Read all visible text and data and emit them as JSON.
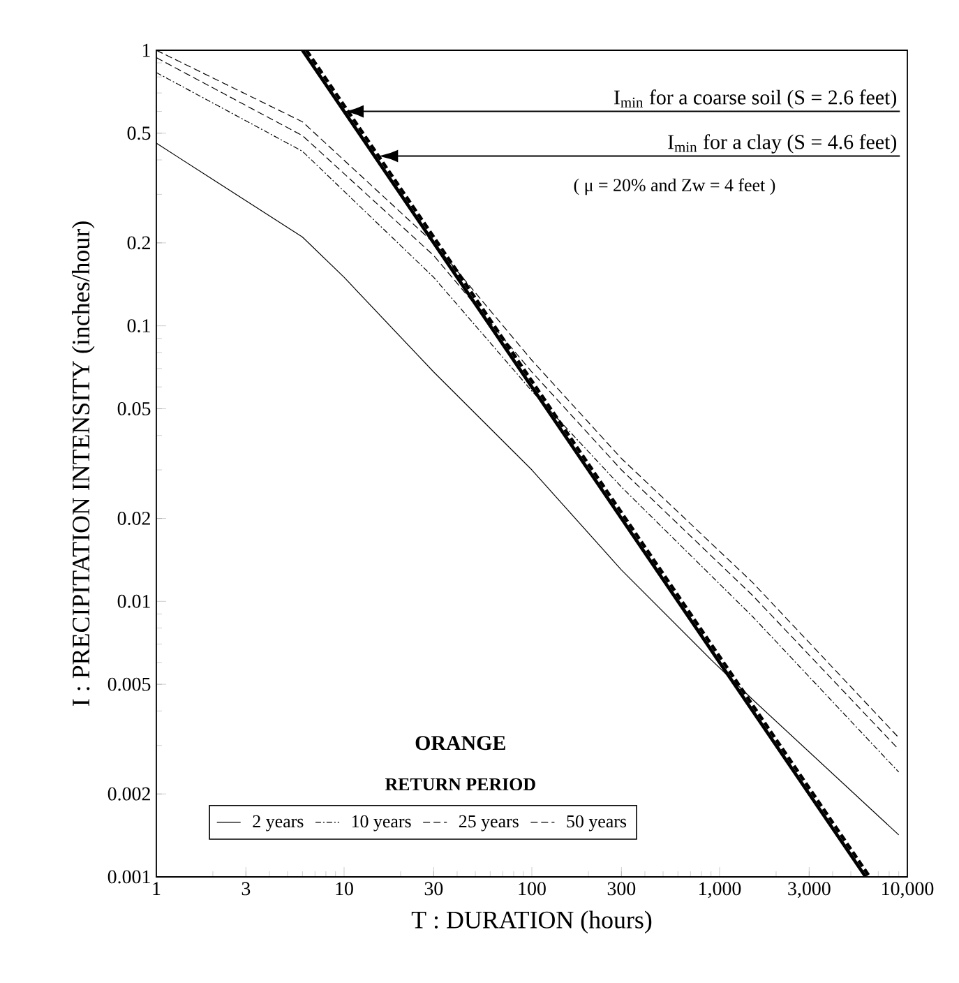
{
  "chart_data": {
    "type": "line",
    "xlabel": "T : DURATION (hours)",
    "ylabel": "I : PRECIPITATION INTENSITY (inches/hour)",
    "legend_title": "RETURN PERIOD",
    "annotations": [
      "ORANGE",
      "( μ = 20% and Zw = 4 feet )"
    ],
    "series": [
      {
        "name": "2 years",
        "color": "#000000",
        "line_style": "solid",
        "x": [
          1,
          6,
          10,
          30,
          100,
          300,
          910,
          1500,
          9000
        ],
        "values": [
          0.46,
          0.21,
          0.15,
          0.068,
          0.03,
          0.013,
          0.0061,
          0.0044,
          0.00142
        ]
      },
      {
        "name": "10 years",
        "color": "#000000",
        "line_style": "dotted",
        "x": [
          1,
          6,
          30,
          100,
          300,
          1500,
          9000
        ],
        "values": [
          0.83,
          0.43,
          0.15,
          0.058,
          0.026,
          0.0088,
          0.0024
        ]
      },
      {
        "name": "25 years",
        "color": "#000000",
        "line_style": "dashed",
        "x": [
          1,
          6,
          30,
          100,
          300,
          1500,
          9000
        ],
        "values": [
          0.94,
          0.49,
          0.18,
          0.068,
          0.03,
          0.0105,
          0.0029
        ]
      },
      {
        "name": "50 years",
        "color": "#000000",
        "line_style": "dashed",
        "x": [
          1,
          6,
          30,
          100,
          300,
          1500,
          9000
        ],
        "values": [
          1.0,
          0.55,
          0.2,
          0.075,
          0.033,
          0.0117,
          0.0032
        ]
      },
      {
        "name": "I$_{min}$ for a coarse soil (S = 2.6 feet)",
        "color": "#000000",
        "line_style": "solid",
        "x": [
          6,
          6000
        ],
        "values": [
          1,
          0.001
        ]
      },
      {
        "name": "I$_{min}$ for a clay (S = 4.6 feet)",
        "color": "#000000",
        "line_style": "dashed",
        "x": [
          6.3,
          6300
        ],
        "values": [
          1,
          0.001
        ]
      }
    ],
    "log": "xy",
    "legend": "bottom left",
    "marker": "none",
    "xlim": [
      1,
      10000
    ],
    "ylim": [
      0.001,
      1
    ],
    "xticks": [
      1,
      3,
      10,
      30,
      100,
      300,
      {
        "value": 1000,
        "label": "1,000"
      },
      {
        "value": 3000,
        "label": "3,000"
      },
      {
        "value": 10000,
        "label": "10,000"
      }
    ],
    "yticks": [
      0.001,
      0.002,
      0.005,
      0.01,
      0.02,
      0.05,
      0.1,
      0.2,
      0.5,
      1
    ]
  }
}
